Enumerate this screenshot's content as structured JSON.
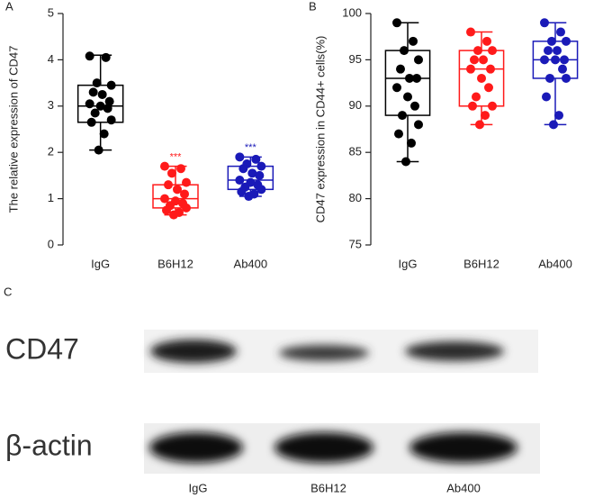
{
  "chart_data": [
    {
      "type": "box",
      "panel_label": "A",
      "y_label": "The relative expression of CD47",
      "ylim": [
        0,
        5
      ],
      "yticks": [
        0,
        1,
        2,
        3,
        4,
        5
      ],
      "categories": [
        "IgG",
        "B6H12",
        "Ab400"
      ],
      "annotations": [
        null,
        "***",
        "***"
      ],
      "boxes": [
        {
          "color": "#000000",
          "min": 2.05,
          "q1": 2.65,
          "median": 3.0,
          "q3": 3.45,
          "max": 4.1,
          "points": [
            4.08,
            4.05,
            3.5,
            3.45,
            3.3,
            3.25,
            3.1,
            3.05,
            3.0,
            2.95,
            2.85,
            2.7,
            2.65,
            2.4,
            2.05
          ]
        },
        {
          "color": "#ff1a1a",
          "min": 0.65,
          "q1": 0.8,
          "median": 1.0,
          "q3": 1.3,
          "max": 1.7,
          "points": [
            1.7,
            1.65,
            1.55,
            1.35,
            1.3,
            1.2,
            1.1,
            1.0,
            0.95,
            0.9,
            0.85,
            0.8,
            0.75,
            0.7,
            0.65
          ]
        },
        {
          "color": "#1a1ab8",
          "min": 1.05,
          "q1": 1.2,
          "median": 1.4,
          "q3": 1.7,
          "max": 1.9,
          "points": [
            1.9,
            1.85,
            1.75,
            1.7,
            1.65,
            1.55,
            1.5,
            1.4,
            1.35,
            1.3,
            1.25,
            1.2,
            1.15,
            1.1,
            1.05
          ]
        }
      ]
    },
    {
      "type": "box",
      "panel_label": "B",
      "y_label": "CD47 expression in CD44+ cells(%)",
      "ylim": [
        75,
        100
      ],
      "yticks": [
        75,
        80,
        85,
        90,
        95,
        100
      ],
      "categories": [
        "IgG",
        "B6H12",
        "Ab400"
      ],
      "annotations": [
        null,
        null,
        null
      ],
      "boxes": [
        {
          "color": "#000000",
          "min": 84,
          "q1": 89,
          "median": 93,
          "q3": 96,
          "max": 99,
          "points": [
            99,
            97,
            96,
            95,
            94,
            93,
            93,
            92,
            91,
            90,
            89,
            88,
            87,
            86,
            84
          ]
        },
        {
          "color": "#ff1a1a",
          "min": 88,
          "q1": 90,
          "median": 94,
          "q3": 96,
          "max": 98,
          "points": [
            98,
            97,
            96,
            96,
            95,
            95,
            94,
            94,
            93,
            92,
            91,
            90,
            90,
            89,
            88
          ]
        },
        {
          "color": "#1a1ab8",
          "min": 88,
          "q1": 93,
          "median": 95,
          "q3": 97,
          "max": 99,
          "points": [
            99,
            98,
            97,
            97,
            96,
            96,
            95,
            95,
            95,
            94,
            93,
            93,
            91,
            89,
            88
          ]
        }
      ]
    }
  ],
  "panel_c": {
    "panel_label": "C",
    "proteins": [
      "CD47",
      "β-actin"
    ],
    "lanes": [
      "IgG",
      "B6H12",
      "Ab400"
    ]
  }
}
